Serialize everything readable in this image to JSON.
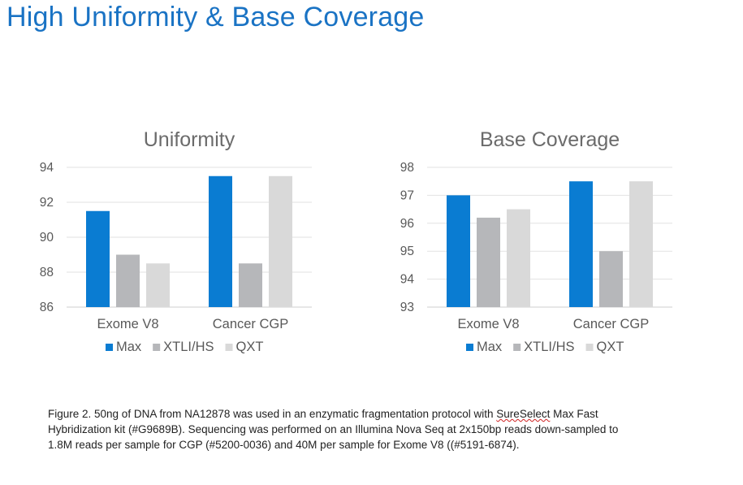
{
  "slide": {
    "title": "High Uniformity & Base Coverage"
  },
  "colors": {
    "title": "#1a73c4",
    "max": "#0a7cd2",
    "xtli_hs": "#b6b7ba",
    "qxt": "#d9d9d9"
  },
  "chart_data": [
    {
      "type": "bar",
      "title": "Uniformity",
      "categories": [
        "Exome V8",
        "Cancer CGP"
      ],
      "series": [
        {
          "name": "Max",
          "values": [
            91.5,
            93.5
          ]
        },
        {
          "name": "XTLI/HS",
          "values": [
            89.0,
            88.5
          ]
        },
        {
          "name": "QXT",
          "values": [
            88.5,
            93.5
          ]
        }
      ],
      "ylim": [
        86,
        94
      ],
      "yticks": [
        "86",
        "88",
        "90",
        "92",
        "94"
      ],
      "grid": true,
      "legend": "bottom",
      "xlabel": "",
      "ylabel": ""
    },
    {
      "type": "bar",
      "title": "Base Coverage",
      "categories": [
        "Exome V8",
        "Cancer CGP"
      ],
      "series": [
        {
          "name": "Max",
          "values": [
            97.0,
            97.5
          ]
        },
        {
          "name": "XTLI/HS",
          "values": [
            96.2,
            95.0
          ]
        },
        {
          "name": "QXT",
          "values": [
            96.5,
            97.5
          ]
        }
      ],
      "ylim": [
        93,
        98
      ],
      "yticks": [
        "93",
        "94",
        "95",
        "96",
        "97",
        "98"
      ],
      "grid": true,
      "legend": "bottom",
      "xlabel": "",
      "ylabel": ""
    }
  ],
  "caption": {
    "part1": "Figure 2. 50ng of DNA from NA12878 was used in an enzymatic fragmentation protocol with ",
    "underlined": "SureSelect",
    "part2": " Max Fast Hybridization kit (#G9689B). Sequencing was performed on an Illumina Nova Seq at 2x150bp reads down-sampled to 1.8M reads per sample for CGP (#5200-0036) and 40M per sample for Exome V8 ((#5191-6874)."
  }
}
